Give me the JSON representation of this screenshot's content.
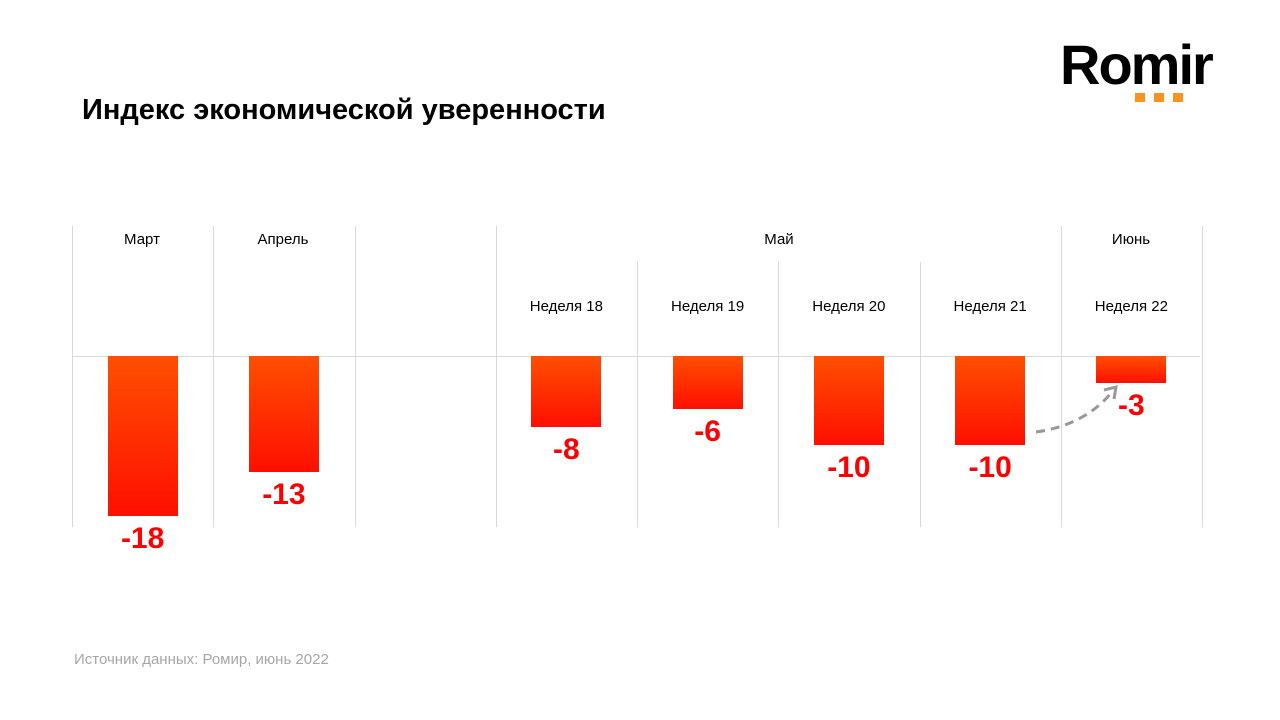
{
  "logo": "Romir",
  "title": "Индекс экономической уверенности",
  "source": "Источник данных: Ромир, июнь 2022",
  "colors": {
    "bar_top": "#ff4f00",
    "bar_bottom": "#ff0f00",
    "label": "#ff0000",
    "logo_dots": "#f7931e"
  },
  "chart_data": {
    "type": "bar",
    "title": "Индекс экономической уверенности",
    "groups": [
      {
        "label": "Март"
      },
      {
        "label": "Апрель"
      },
      {
        "label": "Май"
      },
      {
        "label": "Июнь"
      }
    ],
    "categories": [
      "Март",
      "Апрель",
      "",
      "Неделя 18",
      "Неделя 19",
      "Неделя 20",
      "Неделя 21",
      "Неделя 22"
    ],
    "values": [
      -18,
      -13,
      null,
      -8,
      -6,
      -10,
      -10,
      -3
    ],
    "value_labels": [
      "-18",
      "-13",
      "",
      "-8",
      "-6",
      "-10",
      "-10",
      "-3"
    ],
    "ylim": [
      -18,
      0
    ],
    "annotation": "dashed arrow from Неделя 21 to Неделя 22"
  }
}
